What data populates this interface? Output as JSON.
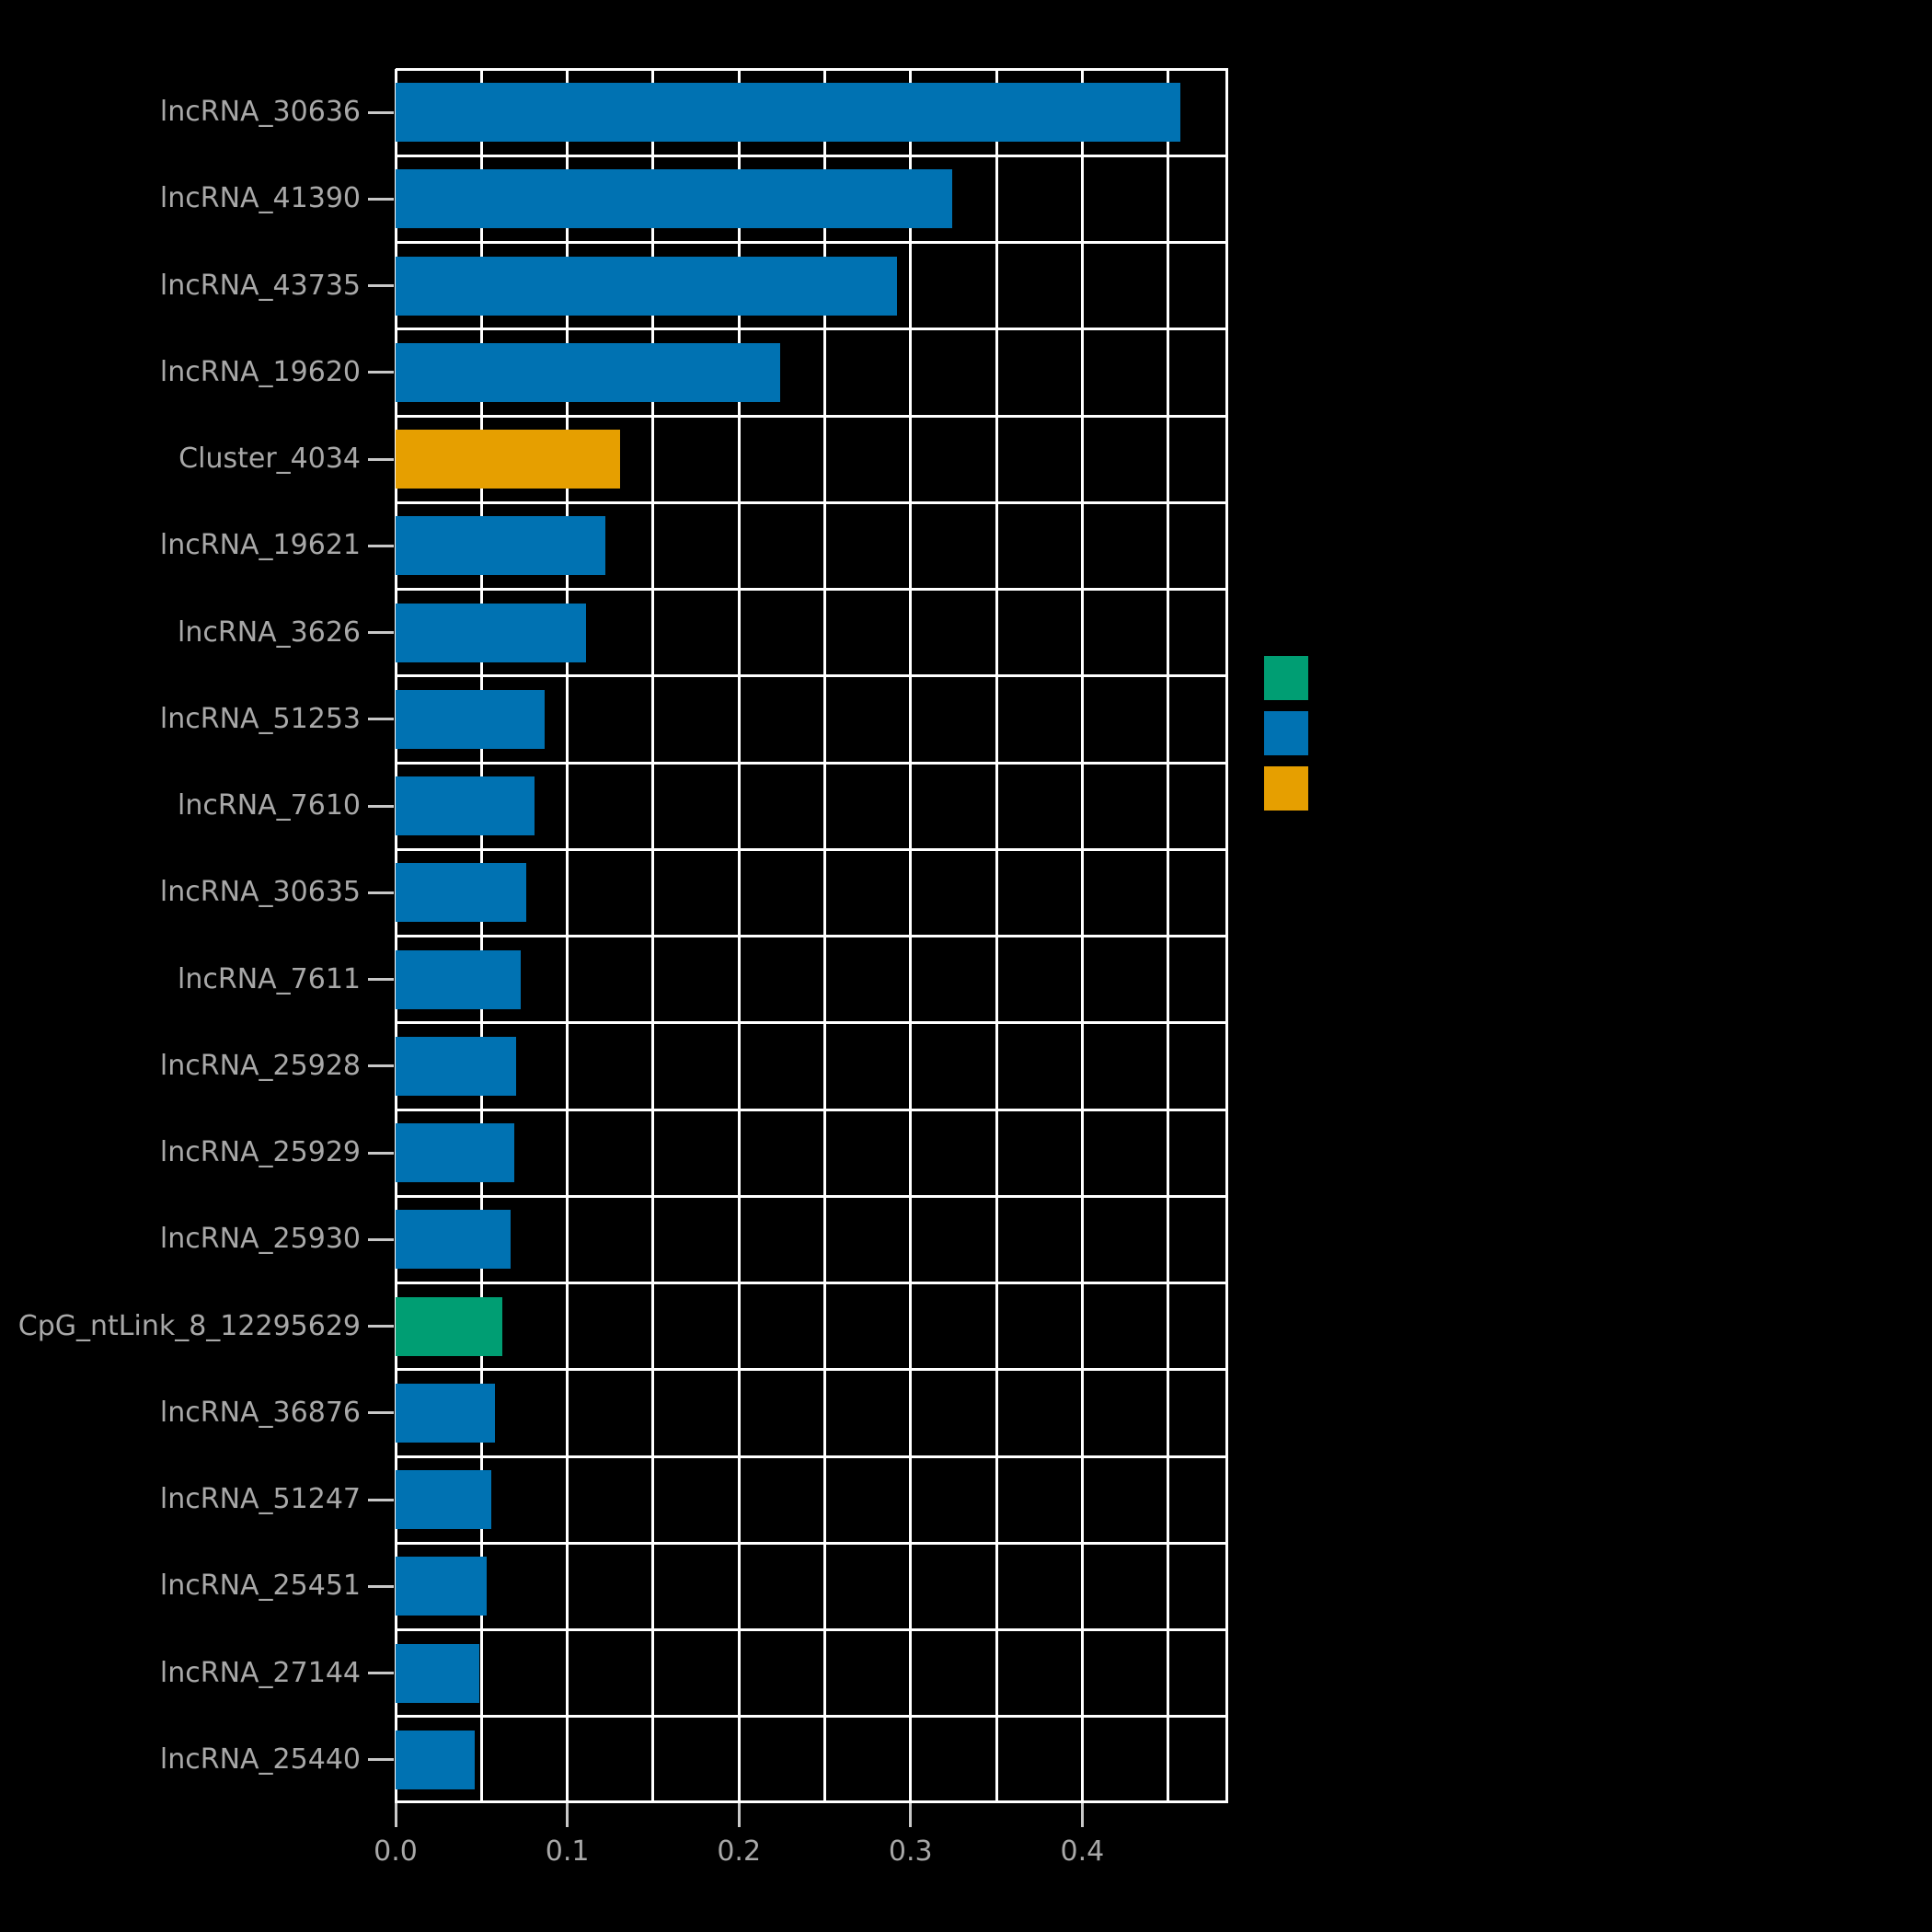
{
  "figure": {
    "background": "#000000",
    "text_color": "#a8a8a8",
    "grid_color": "#ffffff",
    "tick_color": "#c8c8c8"
  },
  "chart_data": {
    "type": "bar",
    "orientation": "horizontal",
    "title": "",
    "xlabel": "",
    "ylabel": "",
    "xlim": [
      0,
      0.485
    ],
    "grid_step": 0.05,
    "grid_on": true,
    "x_ticks": [
      0.0,
      0.1,
      0.2,
      0.3,
      0.4
    ],
    "x_tick_labels": [
      "0.0",
      "0.1",
      "0.2",
      "0.3",
      "0.4"
    ],
    "categories": [
      "lncRNA_30636",
      "lncRNA_41390",
      "lncRNA_43735",
      "lncRNA_19620",
      "Cluster_4034",
      "lncRNA_19621",
      "lncRNA_3626",
      "lncRNA_51253",
      "lncRNA_7610",
      "lncRNA_30635",
      "lncRNA_7611",
      "lncRNA_25928",
      "lncRNA_25929",
      "lncRNA_25930",
      "CpG_ntLink_8_12295629",
      "lncRNA_36876",
      "lncRNA_51247",
      "lncRNA_25451",
      "lncRNA_27144",
      "lncRNA_25440"
    ],
    "values": [
      0.457,
      0.324,
      0.292,
      0.224,
      0.131,
      0.122,
      0.111,
      0.087,
      0.081,
      0.076,
      0.073,
      0.07,
      0.069,
      0.067,
      0.062,
      0.058,
      0.056,
      0.053,
      0.049,
      0.046
    ],
    "bar_colors": [
      "#0072B2",
      "#0072B2",
      "#0072B2",
      "#0072B2",
      "#E69F00",
      "#0072B2",
      "#0072B2",
      "#0072B2",
      "#0072B2",
      "#0072B2",
      "#0072B2",
      "#0072B2",
      "#0072B2",
      "#0072B2",
      "#009E73",
      "#0072B2",
      "#0072B2",
      "#0072B2",
      "#0072B2",
      "#0072B2"
    ],
    "palette": {
      "blue": "#0072B2",
      "orange": "#E69F00",
      "green": "#009E73"
    },
    "legend": {
      "position": "right",
      "swatches": [
        {
          "name": "green",
          "color": "#009E73"
        },
        {
          "name": "blue",
          "color": "#0072B2"
        },
        {
          "name": "orange",
          "color": "#E69F00"
        }
      ]
    }
  }
}
